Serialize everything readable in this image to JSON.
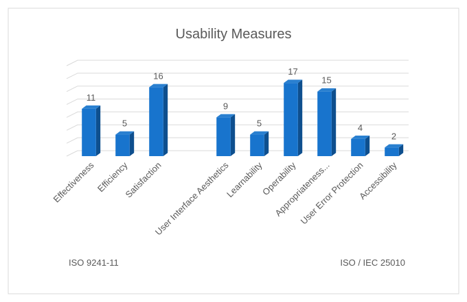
{
  "chart_data": {
    "type": "bar3d",
    "title": "Usability Measures",
    "categories": [
      "Effectiveness",
      "Efficiency",
      "Satisfaction",
      null,
      "User Interface Aesthetics",
      "Learnability",
      "Operability",
      "Appropriateness...",
      "User Error Protection",
      "Accessibility"
    ],
    "values": [
      11,
      5,
      16,
      null,
      9,
      5,
      17,
      15,
      4,
      2
    ],
    "color": "#1874cd",
    "ylim": [
      0,
      21
    ],
    "yticks": [
      0,
      3,
      6,
      9,
      12,
      15,
      18,
      21
    ],
    "grid": true,
    "annotations": [
      "ISO 9241-11",
      "ISO / IEC 25010"
    ]
  }
}
